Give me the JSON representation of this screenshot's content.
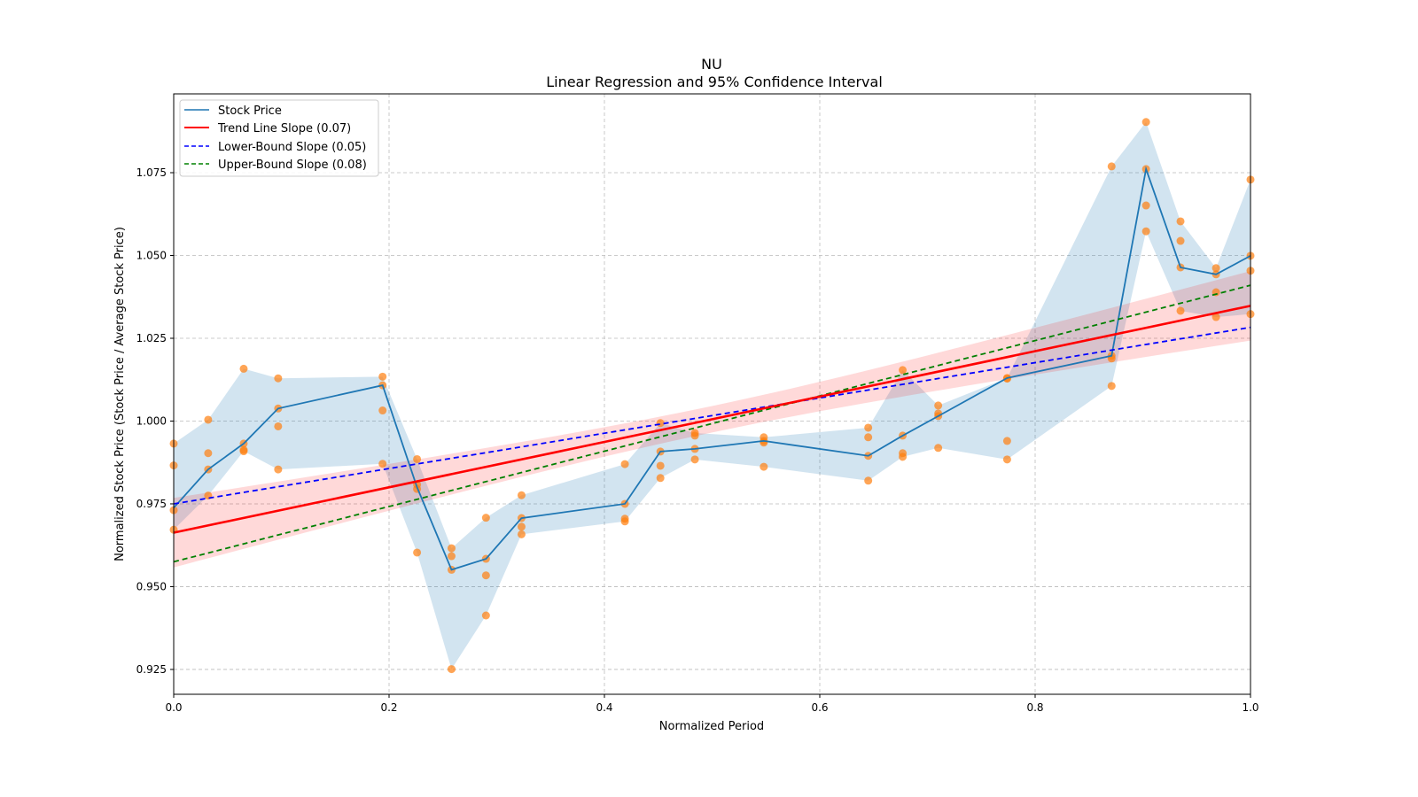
{
  "chart_data": {
    "type": "line",
    "title": "NU",
    "subtitle": "Linear Regression and 95% Confidence Interval",
    "xlabel": "Normalized Period",
    "ylabel": "Normalized Stock Price (Stock Price / Average Stock Price)",
    "xlim": [
      0,
      1
    ],
    "ylim": [
      0.9175,
      1.0988
    ],
    "xticks": [
      "0.0",
      "0.2",
      "0.4",
      "0.6",
      "0.8",
      "1.0"
    ],
    "xtick_values": [
      0,
      0.2,
      0.4,
      0.6,
      0.8,
      1.0
    ],
    "yticks": [
      "0.925",
      "0.950",
      "0.975",
      "1.000",
      "1.025",
      "1.050",
      "1.075"
    ],
    "ytick_values": [
      0.925,
      0.95,
      0.975,
      1.0,
      1.025,
      1.05,
      1.075
    ],
    "grid": true,
    "legend_position": "top-left",
    "legend": [
      "Stock Price",
      "Trend Line Slope (0.07)",
      "Lower-Bound Slope (0.05)",
      "Upper-Bound Slope (0.08)"
    ],
    "colors": {
      "stock": "#1f77b4",
      "scatter": "#ff7f0e",
      "trend": "#ff0000",
      "lower": "#0000ff",
      "upper": "#008000"
    },
    "stock_price": {
      "x": [
        0,
        0.032,
        0.065,
        0.097,
        0.194,
        0.226,
        0.258,
        0.29,
        0.323,
        0.419,
        0.452,
        0.484,
        0.548,
        0.645,
        0.677,
        0.71,
        0.774,
        0.871,
        0.903,
        0.935,
        0.968,
        1.0
      ],
      "y": [
        0.9738,
        0.9854,
        0.9932,
        1.0038,
        1.0108,
        0.98,
        0.9551,
        0.9584,
        0.9707,
        0.975,
        0.9908,
        0.9916,
        0.994,
        0.9895,
        0.9956,
        1.0015,
        1.013,
        1.0197,
        1.0761,
        1.0464,
        1.0443,
        1.0499
      ]
    },
    "scatter_groups": [
      [
        0.9932,
        0.9866,
        0.9731,
        0.9672
      ],
      [
        1.0004,
        0.9903,
        0.9854,
        0.9775
      ],
      [
        1.0158,
        0.9932,
        0.9913,
        0.9909
      ],
      [
        1.0129,
        1.0038,
        0.9984,
        0.9854
      ],
      [
        1.0134,
        1.0108,
        1.0032,
        0.9871
      ],
      [
        0.9885,
        0.9808,
        0.9795,
        0.9603
      ],
      [
        0.9616,
        0.9592,
        0.9551,
        0.9251
      ],
      [
        0.9708,
        0.9584,
        0.9534,
        0.9413
      ],
      [
        0.9776,
        0.9707,
        0.9681,
        0.9658
      ],
      [
        0.987,
        0.975,
        0.9705,
        0.9697
      ],
      [
        0.9994,
        0.9908,
        0.9865,
        0.9828
      ],
      [
        0.9964,
        0.9956,
        0.9916,
        0.9884
      ],
      [
        0.9951,
        0.994,
        0.9935,
        0.9862
      ],
      [
        0.998,
        0.9951,
        0.9895,
        0.982
      ],
      [
        1.0154,
        0.9956,
        0.9903,
        0.9892
      ],
      [
        1.0047,
        1.0023,
        1.0015,
        0.9919
      ],
      [
        1.013,
        1.0128,
        0.994,
        0.9884
      ],
      [
        1.0769,
        1.0197,
        1.0189,
        1.0106
      ],
      [
        1.0903,
        1.0761,
        1.0651,
        1.0573
      ],
      [
        1.0603,
        1.0544,
        1.0464,
        1.0333
      ],
      [
        1.0462,
        1.0443,
        1.0389,
        1.0314
      ],
      [
        1.0729,
        1.0499,
        1.0454,
        1.0323
      ]
    ],
    "trend_line": {
      "intercept": 0.9663,
      "end": 1.0348,
      "slope_label": "0.07"
    },
    "lower_bound_line": {
      "intercept": 0.975,
      "end": 1.0283,
      "slope_label": "0.05"
    },
    "upper_bound_line": {
      "intercept": 0.9575,
      "end": 1.041,
      "slope_label": "0.08"
    },
    "confidence_interval": {
      "halfwidth_at_ends": 0.0105,
      "halfwidth_at_center": 0.004
    }
  }
}
